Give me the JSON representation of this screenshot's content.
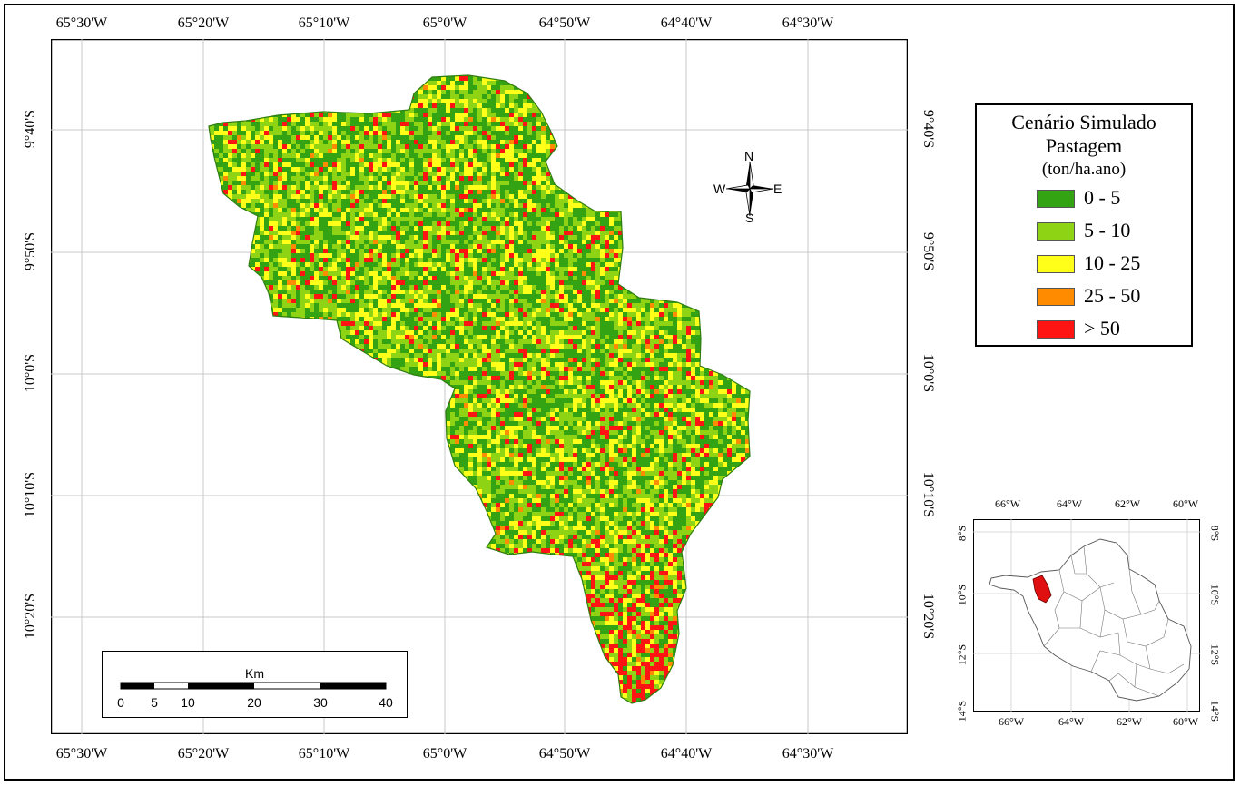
{
  "map": {
    "top_ticks": [
      "65°30'W",
      "65°20'W",
      "65°10'W",
      "65°0'W",
      "64°50'W",
      "64°40'W",
      "64°30'W"
    ],
    "bottom_ticks": [
      "65°30'W",
      "65°20'W",
      "65°10'W",
      "65°0'W",
      "64°50'W",
      "64°40'W",
      "64°30'W"
    ],
    "left_ticks": [
      "9°40'S",
      "9°50'S",
      "10°0'S",
      "10°10'S",
      "10°20'S"
    ],
    "right_ticks": [
      "9°40'S",
      "9°50'S",
      "10°0'S",
      "10°10'S",
      "10°20'S"
    ],
    "class_colors": [
      "#33a314",
      "#8fd414",
      "#ffff1a",
      "#ff8c00",
      "#ff1414"
    ]
  },
  "legend": {
    "title_line1": "Cenário Simulado",
    "title_line2": "Pastagem",
    "units": "(ton/ha.ano)",
    "items": [
      {
        "label": "0 - 5",
        "color": "#33a314"
      },
      {
        "label": "5 - 10",
        "color": "#8fd414"
      },
      {
        "label": "10 - 25",
        "color": "#ffff1a"
      },
      {
        "label": "25 - 50",
        "color": "#ff8c00"
      },
      {
        "label": "> 50",
        "color": "#ff1414"
      }
    ]
  },
  "compass": {
    "n": "N",
    "s": "S",
    "e": "E",
    "w": "W"
  },
  "scalebar": {
    "title": "Km",
    "labels": [
      "0",
      "5",
      "10",
      "20",
      "30",
      "40"
    ]
  },
  "inset": {
    "top_ticks": [
      "66°W",
      "64°W",
      "62°W",
      "60°W"
    ],
    "bottom_ticks": [
      "66°W",
      "64°W",
      "62°W",
      "60°W"
    ],
    "left_ticks": [
      "8°S",
      "10°S",
      "12°S",
      "14°S"
    ],
    "right_ticks": [
      "8°S",
      "10°S",
      "12°S",
      "14°S"
    ],
    "highlight_color": "#e01010"
  }
}
